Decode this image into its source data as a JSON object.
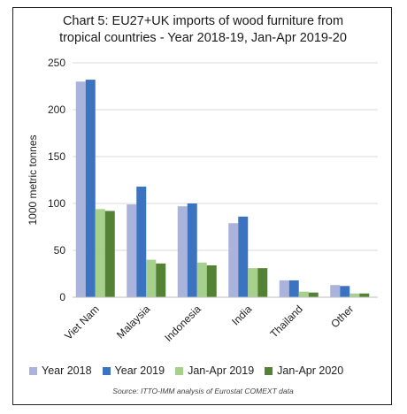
{
  "chart_data": {
    "type": "bar",
    "title_line1": "Chart 5: EU27+UK imports of wood furniture from",
    "title_line2": "tropical countries - Year 2018-19, Jan-Apr 2019-20",
    "ylabel": "1000 metric tonnes",
    "ylim": [
      0,
      250
    ],
    "yticks": [
      0,
      50,
      100,
      150,
      200,
      250
    ],
    "grid": true,
    "legend_position": "bottom",
    "categories": [
      "Viet Nam",
      "Malaysia",
      "Indonesia",
      "India",
      "Thailand",
      "Other"
    ],
    "series": [
      {
        "name": "Year 2018",
        "color": "#aab3dc",
        "values": [
          230,
          99,
          97,
          79,
          18,
          13
        ]
      },
      {
        "name": "Year 2019",
        "color": "#3c73c0",
        "values": [
          232,
          118,
          100,
          86,
          18,
          12
        ]
      },
      {
        "name": "Jan-Apr 2019",
        "color": "#a8d08d",
        "values": [
          94,
          40,
          37,
          31,
          6,
          4
        ]
      },
      {
        "name": "Jan-Apr 2020",
        "color": "#548235",
        "values": [
          92,
          36,
          34,
          31,
          5,
          4
        ]
      }
    ],
    "source": "Source: ITTO-IMM analysis of Eurostat COMEXT data"
  }
}
